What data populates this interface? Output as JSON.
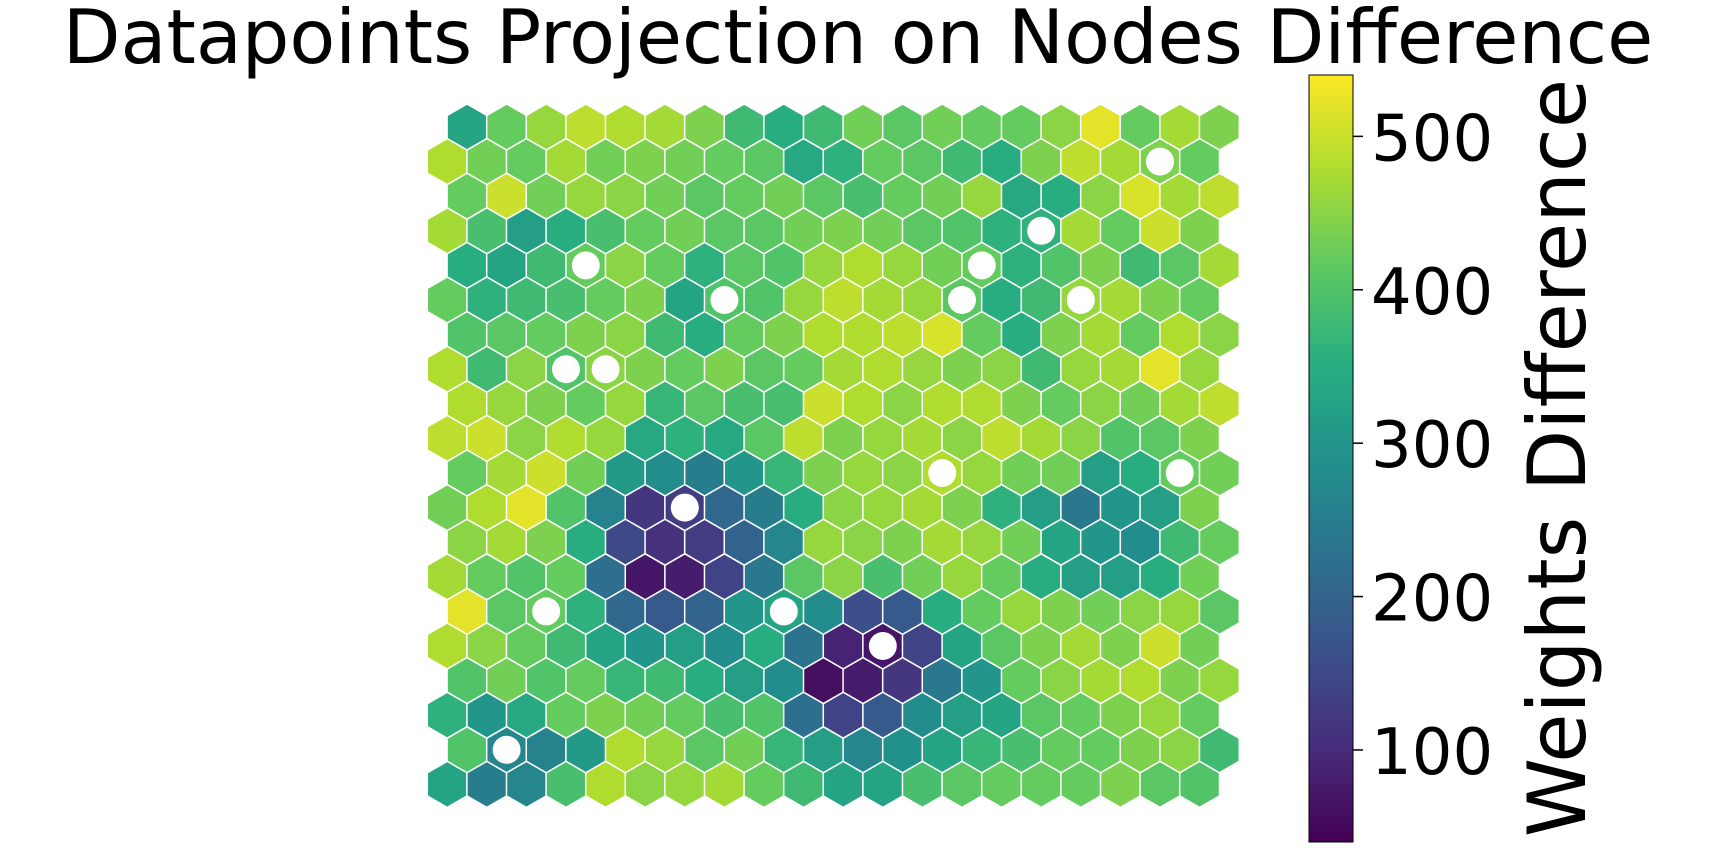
{
  "chart_data": {
    "type": "heatmap",
    "subtype": "hexagonal-som-umatrix",
    "title": "Datapoints Projection on Nodes Difference",
    "colorbar": {
      "label": "Weights Difference",
      "colormap": "viridis",
      "min": 40,
      "max": 540,
      "ticks": [
        100,
        200,
        300,
        400,
        500
      ]
    },
    "grid": {
      "rows": 20,
      "cols": 20,
      "values": [
        [
          330,
          420,
          460,
          490,
          480,
          470,
          440,
          380,
          350,
          380,
          430,
          410,
          430,
          420,
          420,
          450,
          520,
          420,
          470,
          440
        ],
        [
          480,
          430,
          420,
          470,
          430,
          440,
          430,
          420,
          410,
          340,
          360,
          420,
          410,
          380,
          350,
          440,
          490,
          470,
          440,
          420
        ],
        [
          420,
          500,
          430,
          460,
          450,
          430,
          410,
          420,
          430,
          410,
          390,
          420,
          430,
          460,
          340,
          350,
          450,
          510,
          470,
          490
        ],
        [
          470,
          390,
          320,
          350,
          390,
          420,
          430,
          410,
          410,
          430,
          440,
          430,
          410,
          400,
          360,
          360,
          470,
          420,
          500,
          440
        ],
        [
          350,
          330,
          380,
          420,
          450,
          420,
          360,
          410,
          400,
          460,
          480,
          460,
          430,
          420,
          360,
          400,
          440,
          380,
          410,
          470
        ],
        [
          420,
          360,
          380,
          390,
          420,
          440,
          330,
          400,
          400,
          460,
          490,
          470,
          460,
          410,
          350,
          380,
          460,
          470,
          440,
          420
        ],
        [
          400,
          410,
          420,
          440,
          450,
          380,
          350,
          420,
          440,
          480,
          480,
          490,
          510,
          420,
          350,
          440,
          470,
          420,
          480,
          450
        ],
        [
          480,
          380,
          450,
          400,
          450,
          440,
          420,
          440,
          410,
          420,
          470,
          480,
          460,
          440,
          450,
          380,
          460,
          470,
          520,
          460
        ],
        [
          480,
          460,
          440,
          420,
          460,
          370,
          410,
          390,
          390,
          500,
          480,
          450,
          480,
          480,
          440,
          420,
          450,
          430,
          470,
          490
        ],
        [
          490,
          500,
          450,
          480,
          460,
          340,
          360,
          340,
          410,
          490,
          440,
          460,
          470,
          450,
          490,
          470,
          450,
          400,
          410,
          440
        ],
        [
          420,
          470,
          500,
          430,
          310,
          280,
          250,
          300,
          370,
          440,
          460,
          450,
          480,
          460,
          430,
          430,
          320,
          350,
          420,
          430
        ],
        [
          430,
          480,
          520,
          400,
          260,
          120,
          130,
          210,
          250,
          350,
          450,
          460,
          470,
          440,
          360,
          320,
          240,
          300,
          320,
          440
        ],
        [
          450,
          470,
          440,
          350,
          150,
          110,
          130,
          200,
          270,
          460,
          450,
          440,
          470,
          460,
          430,
          330,
          300,
          280,
          380,
          420
        ],
        [
          470,
          420,
          400,
          420,
          220,
          70,
          80,
          140,
          240,
          410,
          450,
          390,
          430,
          460,
          420,
          350,
          320,
          320,
          350,
          430
        ],
        [
          520,
          410,
          420,
          360,
          210,
          180,
          200,
          300,
          330,
          280,
          160,
          180,
          350,
          420,
          460,
          440,
          430,
          450,
          460,
          410
        ],
        [
          480,
          450,
          420,
          380,
          330,
          300,
          320,
          280,
          350,
          230,
          90,
          70,
          140,
          330,
          410,
          440,
          470,
          440,
          500,
          430
        ],
        [
          400,
          430,
          400,
          420,
          370,
          380,
          350,
          320,
          280,
          60,
          80,
          120,
          240,
          300,
          420,
          450,
          470,
          480,
          440,
          460
        ],
        [
          360,
          300,
          340,
          420,
          440,
          430,
          420,
          390,
          400,
          220,
          140,
          180,
          280,
          320,
          330,
          410,
          420,
          440,
          460,
          420
        ],
        [
          400,
          270,
          260,
          310,
          480,
          460,
          410,
          430,
          370,
          320,
          270,
          290,
          330,
          370,
          390,
          420,
          420,
          440,
          450,
          380
        ],
        [
          330,
          250,
          270,
          390,
          480,
          450,
          460,
          470,
          420,
          380,
          330,
          330,
          390,
          410,
          420,
          420,
          420,
          440,
          410,
          400
        ]
      ]
    },
    "projected_datapoints": [
      [
        1,
        18
      ],
      [
        3,
        15
      ],
      [
        4,
        3
      ],
      [
        4,
        13
      ],
      [
        5,
        7
      ],
      [
        5,
        13
      ],
      [
        5,
        16
      ],
      [
        7,
        3
      ],
      [
        7,
        4
      ],
      [
        10,
        12
      ],
      [
        10,
        18
      ],
      [
        11,
        6
      ],
      [
        14,
        2
      ],
      [
        14,
        8
      ],
      [
        15,
        11
      ],
      [
        18,
        1
      ]
    ]
  }
}
